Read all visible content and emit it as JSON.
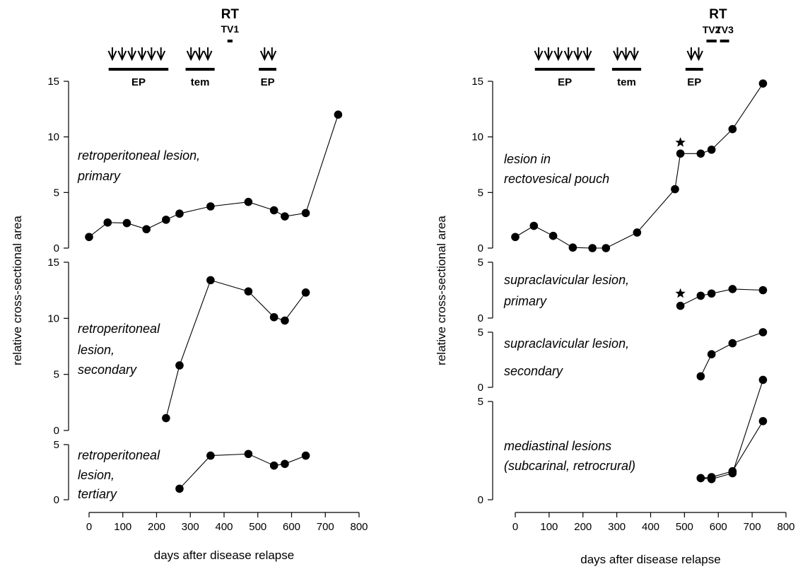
{
  "chart_data": [
    {
      "type": "line",
      "figure": "left",
      "title": "",
      "xlabel": "days after disease relapse",
      "ylabel": "relative cross-sectional area",
      "xlim": [
        0,
        800
      ],
      "xticks": [
        "0",
        "100",
        "200",
        "300",
        "400",
        "500",
        "600",
        "700",
        "800"
      ],
      "treatments": {
        "rt": "RT",
        "tv": [
          {
            "label": "TV1",
            "x": [
              410,
              425
            ]
          }
        ],
        "courses": [
          {
            "label": "EP",
            "x": [
              58,
              235
            ],
            "arrows": [
              69,
              98,
              127,
              157,
              185,
              213
            ]
          },
          {
            "label": "tem",
            "x": [
              286,
              372
            ],
            "arrows": [
              302,
              327,
              352
            ]
          },
          {
            "label": "EP",
            "x": [
              503,
              555
            ],
            "arrows": [
              520,
              542
            ]
          }
        ]
      },
      "panels": [
        {
          "label": [
            "retroperitoneal lesion,",
            "primary"
          ],
          "ylim": [
            0,
            15
          ],
          "yticks": [
            "0",
            "5",
            "10",
            "15"
          ],
          "series": [
            {
              "x": [
                0,
                55,
                112,
                170,
                228,
                268,
                360,
                472,
                548,
                580,
                642,
                738
              ],
              "y": [
                1,
                2.3,
                2.25,
                1.7,
                2.55,
                3.1,
                3.75,
                4.15,
                3.4,
                2.85,
                3.15,
                12.0
              ]
            }
          ]
        },
        {
          "label": [
            "retroperitoneal",
            "lesion,",
            "secondary"
          ],
          "ylim": [
            0,
            15
          ],
          "yticks": [
            "0",
            "5",
            "10",
            "15"
          ],
          "series": [
            {
              "x": [
                228,
                268,
                360,
                472,
                548,
                580,
                642
              ],
              "y": [
                1.1,
                5.8,
                13.4,
                12.4,
                10.1,
                9.8,
                12.3
              ]
            }
          ]
        },
        {
          "label": [
            "retroperitoneal",
            "lesion,",
            "tertiary"
          ],
          "ylim": [
            0,
            5
          ],
          "yticks": [
            "0",
            "5"
          ],
          "series": [
            {
              "x": [
                268,
                360,
                472,
                548,
                580,
                642
              ],
              "y": [
                1.0,
                4.0,
                4.15,
                3.1,
                3.25,
                4.0
              ]
            }
          ]
        }
      ]
    },
    {
      "type": "line",
      "figure": "right",
      "title": "",
      "xlabel": "days after disease relapse",
      "ylabel": "relative cross-sectional area",
      "xlim": [
        0,
        800
      ],
      "xticks": [
        "0",
        "100",
        "200",
        "300",
        "400",
        "500",
        "600",
        "700",
        "800"
      ],
      "treatments": {
        "rt": "RT",
        "tv": [
          {
            "label": "TV2",
            "x": [
              565,
              595
            ]
          },
          {
            "label": "TV3",
            "x": [
              605,
              632
            ]
          }
        ],
        "courses": [
          {
            "label": "EP",
            "x": [
              58,
              235
            ],
            "arrows": [
              69,
              98,
              127,
              157,
              185,
              213
            ]
          },
          {
            "label": "tem",
            "x": [
              286,
              372
            ],
            "arrows": [
              302,
              327,
              352
            ]
          },
          {
            "label": "EP",
            "x": [
              503,
              555
            ],
            "arrows": [
              520,
              542
            ]
          }
        ]
      },
      "panels": [
        {
          "label": [
            "lesion in",
            "rectovesical pouch"
          ],
          "ylim": [
            0,
            15
          ],
          "yticks": [
            "0",
            "5",
            "10",
            "15"
          ],
          "star": {
            "x": 488,
            "y": 9.5
          },
          "series": [
            {
              "x": [
                0,
                55,
                112,
                170,
                228,
                268,
                360,
                472,
                488,
                548,
                580,
                642,
                732
              ],
              "y": [
                1,
                2.0,
                1.1,
                0.05,
                0.0,
                0.0,
                1.4,
                5.3,
                8.5,
                8.5,
                8.85,
                10.7,
                14.8
              ]
            }
          ]
        },
        {
          "label": [
            "supraclavicular lesion,",
            "primary"
          ],
          "ylim": [
            0,
            5
          ],
          "yticks": [
            "0",
            "5"
          ],
          "star": {
            "x": 488,
            "y": 2.2
          },
          "series": [
            {
              "x": [
                488,
                548,
                580,
                642,
                732
              ],
              "y": [
                1.1,
                2.0,
                2.2,
                2.6,
                2.5
              ]
            }
          ]
        },
        {
          "label": [
            "supraclavicular lesion,",
            "secondary"
          ],
          "ylim": [
            0,
            5
          ],
          "yticks": [
            "0",
            "5"
          ],
          "series": [
            {
              "x": [
                548,
                580,
                642,
                732
              ],
              "y": [
                1.0,
                3.0,
                4.0,
                5.0
              ]
            }
          ]
        },
        {
          "label": [
            "mediastinal lesions",
            "(subcarinal, retrocrural)"
          ],
          "ylim": [
            0,
            5
          ],
          "yticks": [
            "0",
            "5"
          ],
          "series": [
            {
              "x": [
                548,
                580,
                642,
                732
              ],
              "y": [
                1.1,
                1.05,
                1.35,
                6.1
              ]
            },
            {
              "x": [
                548,
                580,
                642,
                732
              ],
              "y": [
                1.1,
                1.15,
                1.45,
                4.0
              ]
            }
          ]
        }
      ]
    }
  ]
}
